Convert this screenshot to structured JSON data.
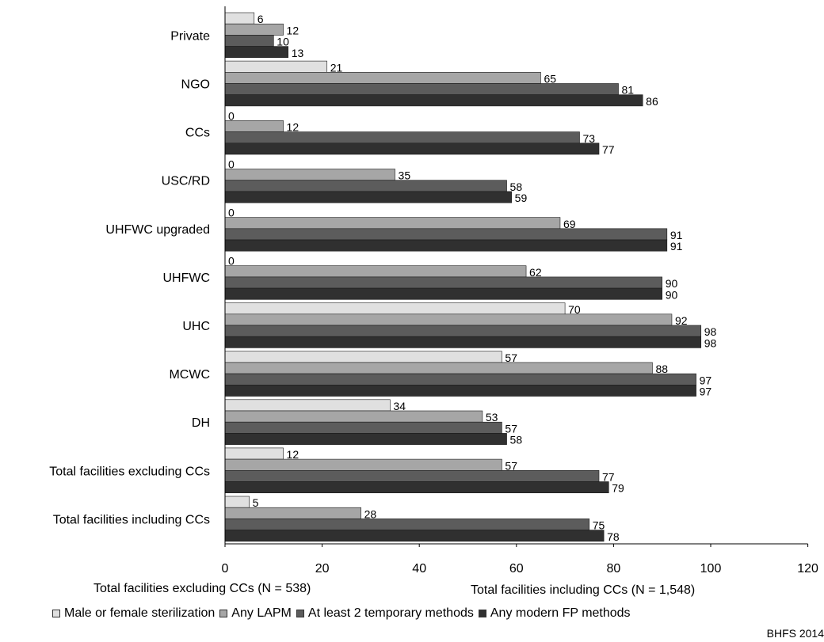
{
  "chart_data": {
    "type": "bar",
    "orientation": "horizontal",
    "categories": [
      "Private",
      "NGO",
      "CCs",
      "USC/RD",
      "UHFWC upgraded",
      "UHFWC",
      "UHC",
      "MCWC",
      "DH",
      "Total facilities excluding CCs",
      "Total facilities including CCs"
    ],
    "series": [
      {
        "name": "Male or female sterilization",
        "color": "#e0e0e0",
        "values": [
          6,
          21,
          0,
          0,
          0,
          0,
          70,
          57,
          34,
          12,
          5
        ]
      },
      {
        "name": "Any LAPM",
        "color": "#a6a6a6",
        "values": [
          12,
          65,
          12,
          35,
          69,
          62,
          92,
          88,
          53,
          57,
          28
        ]
      },
      {
        "name": "At least 2 temporary methods",
        "color": "#5c5c5c",
        "values": [
          10,
          81,
          73,
          58,
          91,
          90,
          98,
          97,
          57,
          77,
          75
        ]
      },
      {
        "name": "Any modern FP methods",
        "color": "#303030",
        "values": [
          13,
          86,
          77,
          59,
          91,
          90,
          98,
          97,
          58,
          79,
          78
        ]
      }
    ],
    "xlim": [
      0,
      120
    ],
    "xticks": [
      0,
      20,
      40,
      60,
      80,
      100,
      120
    ],
    "grid": false,
    "legend_position": "bottom",
    "notes": [
      "Total facilities excluding CCs (N = 538)",
      "Total facilities including CCs (N = 1,548)"
    ],
    "source": "BHFS 2014"
  }
}
